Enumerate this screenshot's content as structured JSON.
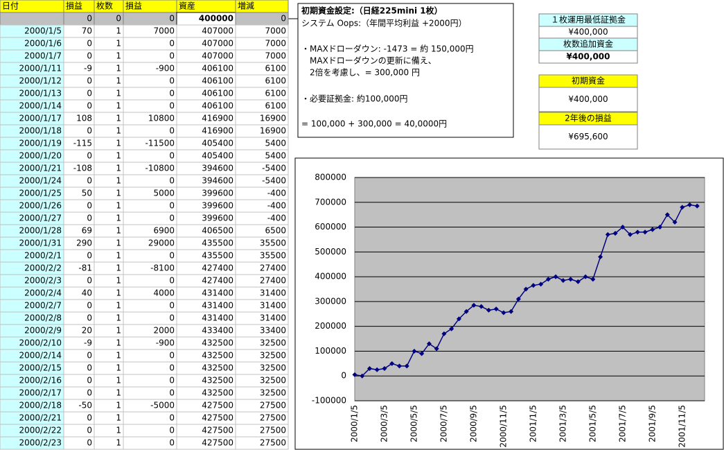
{
  "table": {
    "headers": [
      "日付",
      "損益",
      "枚数",
      "損益",
      "資産",
      "増減"
    ],
    "initial_row": [
      0,
      0,
      0,
      400000,
      0
    ],
    "rows": [
      [
        "2000/1/5",
        70,
        1,
        7000,
        407000,
        7000
      ],
      [
        "2000/1/6",
        0,
        1,
        0,
        407000,
        7000
      ],
      [
        "2000/1/7",
        0,
        1,
        0,
        407000,
        7000
      ],
      [
        "2000/1/11",
        -9,
        1,
        -900,
        406100,
        6100
      ],
      [
        "2000/1/12",
        0,
        1,
        0,
        406100,
        6100
      ],
      [
        "2000/1/13",
        0,
        1,
        0,
        406100,
        6100
      ],
      [
        "2000/1/14",
        0,
        1,
        0,
        406100,
        6100
      ],
      [
        "2000/1/17",
        108,
        1,
        10800,
        416900,
        16900
      ],
      [
        "2000/1/18",
        0,
        1,
        0,
        416900,
        16900
      ],
      [
        "2000/1/19",
        -115,
        1,
        -11500,
        405400,
        5400
      ],
      [
        "2000/1/20",
        0,
        1,
        0,
        405400,
        5400
      ],
      [
        "2000/1/21",
        -108,
        1,
        -10800,
        394600,
        -5400
      ],
      [
        "2000/1/24",
        0,
        1,
        0,
        394600,
        -5400
      ],
      [
        "2000/1/25",
        50,
        1,
        5000,
        399600,
        -400
      ],
      [
        "2000/1/26",
        0,
        1,
        0,
        399600,
        -400
      ],
      [
        "2000/1/27",
        0,
        1,
        0,
        399600,
        -400
      ],
      [
        "2000/1/28",
        69,
        1,
        6900,
        406500,
        6500
      ],
      [
        "2000/1/31",
        290,
        1,
        29000,
        435500,
        35500
      ],
      [
        "2000/2/1",
        0,
        1,
        0,
        435500,
        35500
      ],
      [
        "2000/2/2",
        -81,
        1,
        -8100,
        427400,
        27400
      ],
      [
        "2000/2/3",
        0,
        1,
        0,
        427400,
        27400
      ],
      [
        "2000/2/4",
        40,
        1,
        4000,
        431400,
        31400
      ],
      [
        "2000/2/7",
        0,
        1,
        0,
        431400,
        31400
      ],
      [
        "2000/2/8",
        0,
        1,
        0,
        431400,
        31400
      ],
      [
        "2000/2/9",
        20,
        1,
        2000,
        433400,
        33400
      ],
      [
        "2000/2/10",
        -9,
        1,
        -900,
        432500,
        32500
      ],
      [
        "2000/2/14",
        0,
        1,
        0,
        432500,
        32500
      ],
      [
        "2000/2/15",
        0,
        1,
        0,
        432500,
        32500
      ],
      [
        "2000/2/16",
        0,
        1,
        0,
        432500,
        32500
      ],
      [
        "2000/2/17",
        0,
        1,
        0,
        432500,
        32500
      ],
      [
        "2000/2/18",
        -50,
        1,
        -5000,
        427500,
        27500
      ],
      [
        "2000/2/21",
        0,
        1,
        0,
        427500,
        27500
      ],
      [
        "2000/2/22",
        0,
        1,
        0,
        427500,
        27500
      ],
      [
        "2000/2/23",
        0,
        1,
        0,
        427500,
        27500
      ]
    ]
  },
  "note": {
    "title": "初期資金設定:（日経225mini 1枚）",
    "lines": [
      "システム Oops:（年間平均利益 +2000円）",
      "・MAXドローダウン: -1473 = 約 150,000円",
      "　MAXドローダウンの更新に備え、",
      "　2倍を考慮し、= 300,000 円",
      "・必要証拠金:  約100,000円",
      " = 100,000 + 300,000 = 40,0000円"
    ]
  },
  "summary": {
    "min_margin_label": "１枚運用最低証拠金",
    "min_margin": "¥400,000",
    "add_label": "枚数追加資金",
    "add_value": "¥400,000",
    "initial_label": "初期資金",
    "initial_value": "¥400,000",
    "profit_label": "2年後の損益",
    "profit_value": "¥695,600"
  },
  "chart_data": {
    "type": "line",
    "categories": [
      "2000/1/5",
      null,
      null,
      null,
      "2000/3/5",
      null,
      null,
      null,
      "2000/5/5",
      null,
      null,
      null,
      "2000/7/5",
      null,
      null,
      null,
      "2000/9/5",
      null,
      null,
      null,
      "2000/11/5",
      null,
      null,
      null,
      "2001/1/5",
      null,
      null,
      null,
      "2001/3/5",
      null,
      null,
      null,
      "2001/5/5",
      null,
      null,
      null,
      "2001/7/5",
      null,
      null,
      null,
      "2001/9/5",
      null,
      null,
      null,
      "2001/11/5",
      null,
      null
    ],
    "series": [
      {
        "color": "#000080",
        "values": [
          5000,
          0,
          30000,
          25000,
          30000,
          50000,
          40000,
          40000,
          100000,
          90000,
          130000,
          110000,
          170000,
          190000,
          230000,
          260000,
          285000,
          280000,
          265000,
          270000,
          255000,
          260000,
          310000,
          350000,
          365000,
          370000,
          390000,
          400000,
          385000,
          390000,
          380000,
          400000,
          390000,
          480000,
          570000,
          575000,
          600000,
          570000,
          580000,
          580000,
          590000,
          600000,
          650000,
          620000,
          680000,
          690000,
          685000
        ]
      }
    ],
    "ylim": [
      -100000,
      800000
    ],
    "yticks": [
      -100000,
      0,
      100000,
      200000,
      300000,
      400000,
      500000,
      600000,
      700000,
      800000
    ],
    "grid": true
  }
}
